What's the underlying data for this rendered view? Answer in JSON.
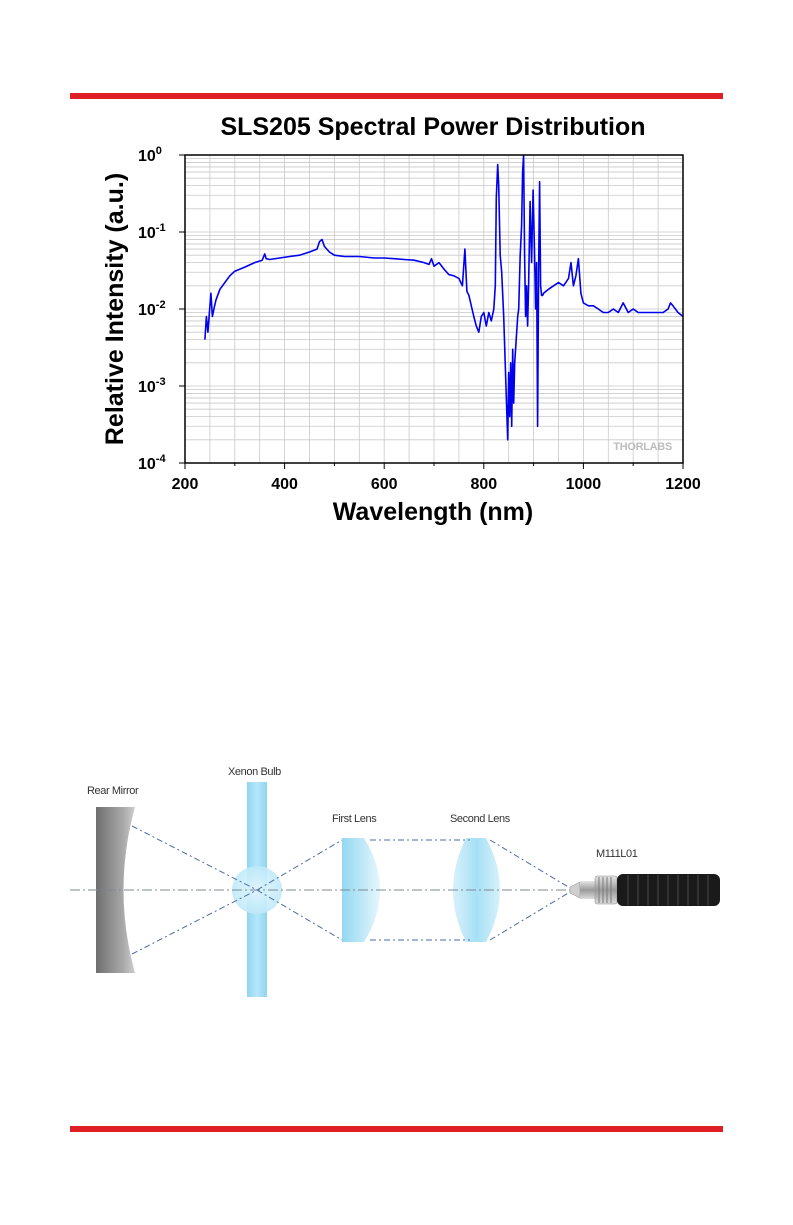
{
  "chart_data": {
    "type": "line",
    "title": "SLS205 Spectral Power Distribution",
    "xlabel": "Wavelength (nm)",
    "ylabel": "Relative Intensity (a.u.)",
    "xlim": [
      200,
      1200
    ],
    "ylim": [
      0.0001,
      1
    ],
    "yscale": "log",
    "grid": true,
    "x_ticks": [
      "200",
      "400",
      "600",
      "800",
      "1000",
      "1200"
    ],
    "y_ticks": [
      {
        "base": "10",
        "exp": "0"
      },
      {
        "base": "10",
        "exp": "-1"
      },
      {
        "base": "10",
        "exp": "-2"
      },
      {
        "base": "10",
        "exp": "-3"
      },
      {
        "base": "10",
        "exp": "-4"
      }
    ],
    "watermark": "THORLABS",
    "line_color": "#0000ee",
    "series": [
      {
        "x": [
          240,
          243,
          246,
          249,
          252,
          255,
          258,
          262,
          270,
          280,
          290,
          300,
          320,
          340,
          355,
          360,
          363,
          370,
          390,
          410,
          430,
          450,
          465,
          470,
          475,
          480,
          490,
          500,
          520,
          550,
          580,
          600,
          620,
          640,
          660,
          680,
          690,
          695,
          700,
          710,
          720,
          730,
          740,
          750,
          757,
          762,
          766,
          770,
          780,
          785,
          790,
          795,
          800,
          805,
          810,
          815,
          820,
          823,
          825,
          828,
          830,
          833,
          836,
          840,
          843,
          846,
          848,
          850,
          852,
          854,
          856,
          858,
          860,
          862,
          865,
          868,
          870,
          873,
          876,
          878,
          880,
          882,
          884,
          886,
          888,
          890,
          893,
          896,
          899,
          902,
          904,
          906,
          908,
          910,
          912,
          914,
          916,
          918,
          920,
          925,
          930,
          940,
          950,
          960,
          970,
          975,
          980,
          985,
          990,
          995,
          1000,
          1010,
          1020,
          1030,
          1040,
          1050,
          1060,
          1070,
          1080,
          1090,
          1100,
          1110,
          1120,
          1130,
          1140,
          1150,
          1160,
          1170,
          1175,
          1180,
          1190,
          1200
        ],
        "y": [
          0.004,
          0.008,
          0.005,
          0.009,
          0.016,
          0.008,
          0.01,
          0.013,
          0.018,
          0.022,
          0.027,
          0.031,
          0.035,
          0.04,
          0.043,
          0.052,
          0.045,
          0.044,
          0.046,
          0.048,
          0.05,
          0.055,
          0.06,
          0.075,
          0.08,
          0.065,
          0.055,
          0.05,
          0.048,
          0.048,
          0.046,
          0.046,
          0.045,
          0.044,
          0.043,
          0.04,
          0.038,
          0.045,
          0.036,
          0.04,
          0.033,
          0.028,
          0.027,
          0.025,
          0.02,
          0.06,
          0.017,
          0.015,
          0.008,
          0.006,
          0.005,
          0.008,
          0.009,
          0.006,
          0.009,
          0.007,
          0.01,
          0.02,
          0.28,
          0.75,
          0.4,
          0.05,
          0.03,
          0.008,
          0.002,
          0.0005,
          0.0002,
          0.0015,
          0.0004,
          0.002,
          0.0003,
          0.003,
          0.0006,
          0.002,
          0.004,
          0.008,
          0.01,
          0.05,
          0.12,
          0.6,
          1.0,
          0.05,
          0.008,
          0.02,
          0.006,
          0.02,
          0.25,
          0.04,
          0.35,
          0.05,
          0.01,
          0.04,
          0.0003,
          0.03,
          0.45,
          0.02,
          0.015,
          0.015,
          0.016,
          0.017,
          0.018,
          0.02,
          0.022,
          0.02,
          0.025,
          0.04,
          0.02,
          0.027,
          0.045,
          0.016,
          0.012,
          0.011,
          0.011,
          0.01,
          0.009,
          0.009,
          0.01,
          0.009,
          0.012,
          0.009,
          0.01,
          0.009,
          0.009,
          0.009,
          0.009,
          0.009,
          0.009,
          0.01,
          0.012,
          0.011,
          0.009,
          0.008
        ]
      }
    ]
  },
  "diagram": {
    "labels": {
      "rear_mirror": "Rear Mirror",
      "xenon_bulb": "Xenon Bulb",
      "first_lens": "First Lens",
      "second_lens": "Second Lens",
      "fiber": "M111L01"
    }
  }
}
